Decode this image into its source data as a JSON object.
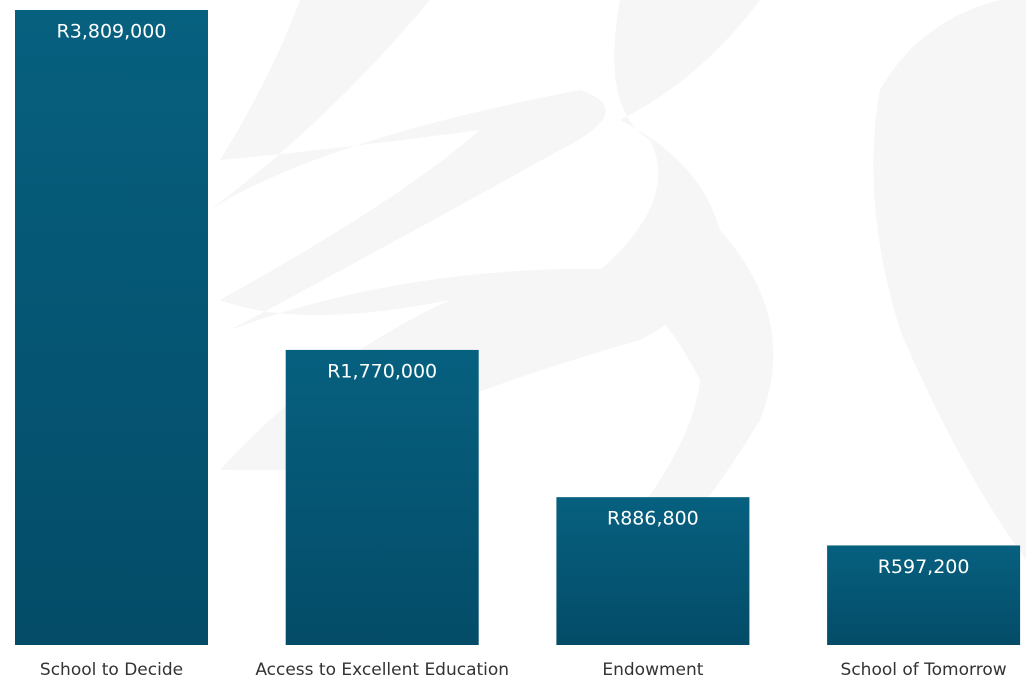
{
  "chart_data": {
    "type": "bar",
    "categories": [
      "School to Decide",
      "Access to Excellent Education",
      "Endowment",
      "School of Tomorrow"
    ],
    "values": [
      3809000,
      1770000,
      886800,
      597200
    ],
    "value_labels": [
      "R3,809,000",
      "R1,770,000",
      "R886,800",
      "R597,200"
    ],
    "color": "#06607f"
  }
}
